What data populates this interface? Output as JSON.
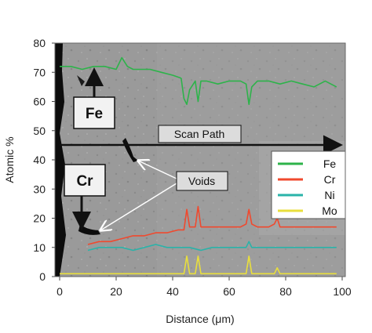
{
  "chart_data": {
    "type": "line",
    "xlabel": "Distance (μm)",
    "ylabel": "Atomic %",
    "xlim": [
      0,
      100
    ],
    "ylim": [
      0,
      80
    ],
    "x_ticks": [
      0,
      20,
      40,
      60,
      80,
      100
    ],
    "y_ticks": [
      0,
      10,
      20,
      30,
      40,
      50,
      60,
      70,
      80
    ],
    "grid": false,
    "legend_position": "right",
    "background": "micrograph",
    "series": [
      {
        "name": "Fe",
        "color": "#2db34a",
        "x": [
          0,
          4,
          8,
          12,
          16,
          20,
          22,
          24,
          26,
          28,
          32,
          36,
          40,
          43,
          44,
          45,
          46,
          48,
          49,
          50,
          52,
          56,
          60,
          64,
          66,
          67,
          68,
          70,
          74,
          78,
          82,
          86,
          90,
          94,
          98
        ],
        "values": [
          72,
          72,
          71,
          72,
          72,
          71,
          75,
          72,
          71,
          71,
          71,
          70,
          69,
          68,
          61,
          59,
          64,
          67,
          60,
          67,
          67,
          66,
          67,
          67,
          66,
          59,
          65,
          67,
          67,
          66,
          67,
          66,
          65,
          67,
          65
        ]
      },
      {
        "name": "Cr",
        "color": "#f0492e",
        "x": [
          10,
          14,
          18,
          22,
          26,
          30,
          34,
          38,
          42,
          44,
          45,
          46,
          48,
          49,
          50,
          52,
          56,
          60,
          64,
          66,
          67,
          68,
          70,
          74,
          76,
          77,
          78,
          82,
          86,
          90,
          94,
          98
        ],
        "values": [
          11,
          12,
          12,
          13,
          14,
          14,
          15,
          15,
          16,
          16,
          23,
          17,
          17,
          24,
          17,
          17,
          17,
          17,
          17,
          18,
          23,
          18,
          17,
          17,
          18,
          20,
          17,
          17,
          17,
          17,
          17,
          17
        ]
      },
      {
        "name": "Ni",
        "color": "#2ab3a9",
        "x": [
          10,
          14,
          18,
          22,
          26,
          30,
          34,
          38,
          42,
          44,
          46,
          50,
          54,
          58,
          62,
          66,
          67,
          68,
          70,
          74,
          78,
          82,
          86,
          90,
          94,
          98
        ],
        "values": [
          9,
          10,
          10,
          10,
          9,
          10,
          11,
          10,
          10,
          10,
          10,
          9,
          10,
          10,
          10,
          10,
          12,
          10,
          10,
          10,
          10,
          10,
          10,
          10,
          10,
          10
        ]
      },
      {
        "name": "Mo",
        "color": "#e9df3c",
        "x": [
          0,
          4,
          8,
          12,
          16,
          20,
          24,
          28,
          32,
          36,
          40,
          44,
          45,
          46,
          48,
          49,
          50,
          52,
          56,
          60,
          64,
          66,
          67,
          68,
          70,
          74,
          76,
          77,
          78,
          82,
          86,
          90,
          94,
          98
        ],
        "values": [
          1,
          1,
          1,
          1,
          1,
          1,
          1,
          1,
          1,
          1,
          1,
          1,
          7,
          1,
          1,
          7,
          1,
          1,
          1,
          1,
          1,
          1,
          7,
          1,
          1,
          1,
          1,
          3,
          1,
          1,
          1,
          1,
          1,
          1
        ]
      }
    ],
    "annotations": {
      "fe_box": "Fe",
      "cr_box": "Cr",
      "scan_path": "Scan Path",
      "voids": "Voids"
    }
  }
}
